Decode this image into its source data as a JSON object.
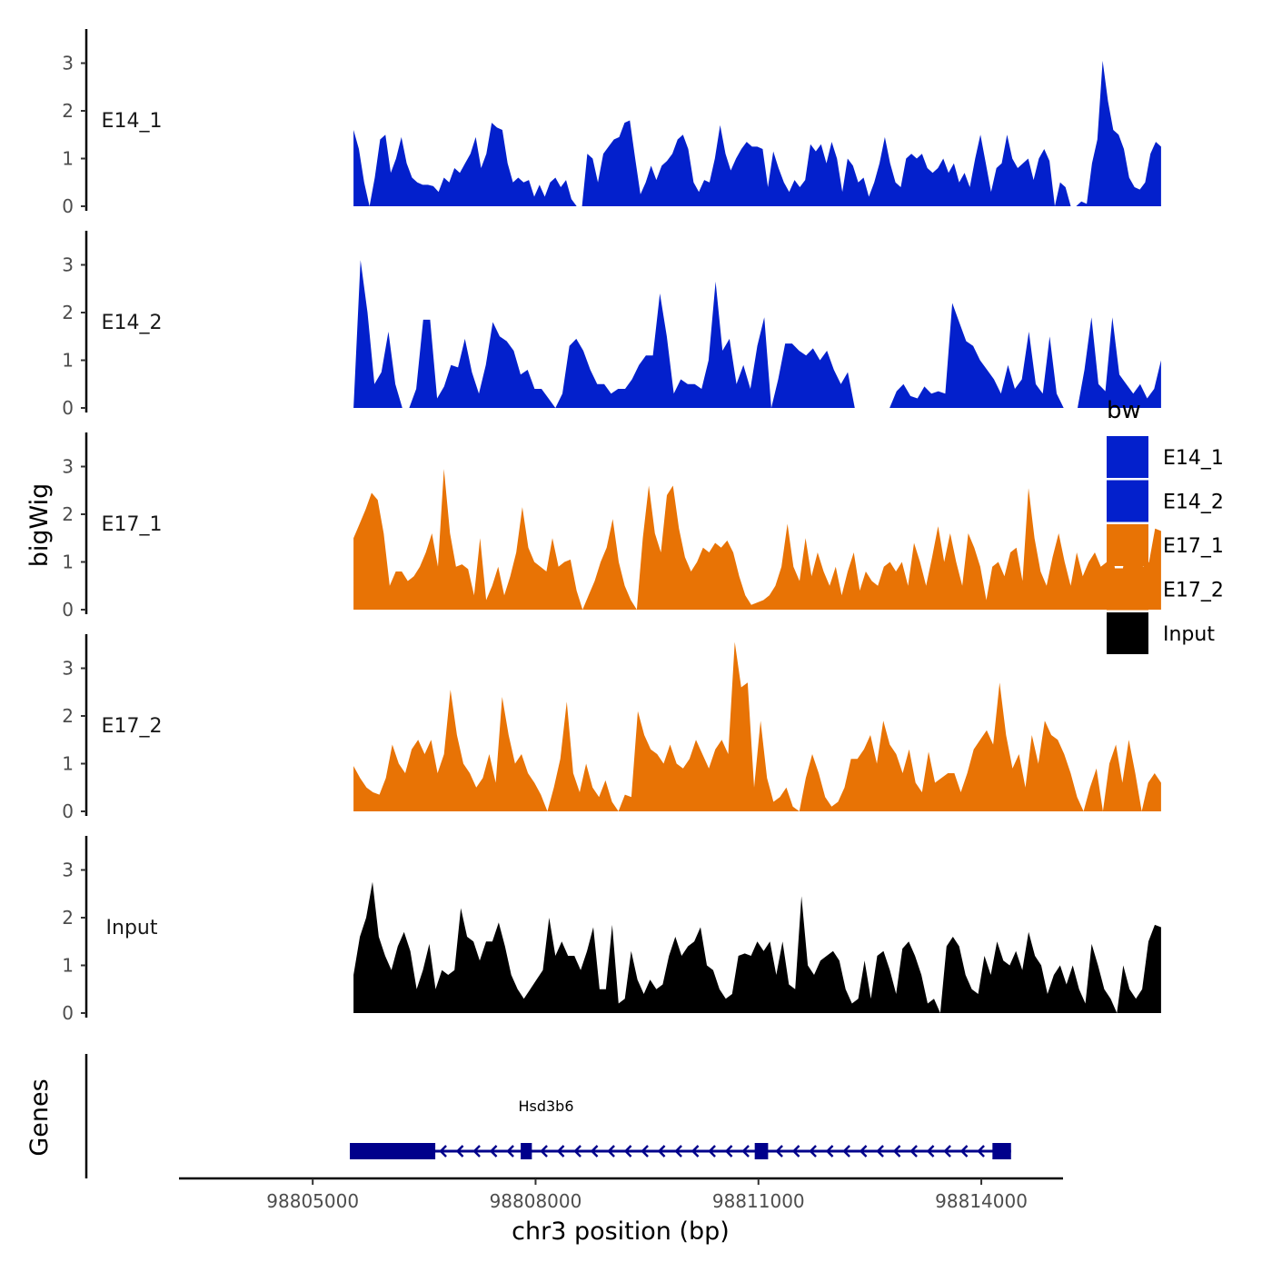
{
  "chart_data": {
    "type": "area",
    "xlabel": "chr3 position (bp)",
    "ylabel": "bigWig",
    "xlim": [
      98803200,
      98815100
    ],
    "x_ticks": [
      98805000,
      98808000,
      98811000,
      98814000
    ],
    "x_tick_labels": [
      "98805000",
      "98808000",
      "98811000",
      "98814000"
    ],
    "ylim": [
      0,
      3.8
    ],
    "y_ticks": [
      0,
      1,
      2,
      3
    ],
    "y_tick_labels": [
      "0",
      "1",
      "2",
      "3"
    ],
    "signal_start": 98805550,
    "signal_end": 98816420,
    "legend": {
      "title": "bw",
      "entries": [
        {
          "label": "E14_1",
          "color": "#0320CC"
        },
        {
          "label": "E14_2",
          "color": "#0320CC"
        },
        {
          "label": "E17_1",
          "color": "#E87305"
        },
        {
          "label": "E17_2",
          "color": "#E87305"
        },
        {
          "label": "Input",
          "color": "#000000"
        }
      ]
    },
    "series": [
      {
        "name": "E14_1",
        "color": "#0320CC",
        "values": [
          1.6,
          1.2,
          0.5,
          0.0,
          0.6,
          1.4,
          1.5,
          0.7,
          1.0,
          1.45,
          0.9,
          0.6,
          0.5,
          0.45,
          0.45,
          0.42,
          0.3,
          0.6,
          0.5,
          0.8,
          0.7,
          0.9,
          1.1,
          1.45,
          0.8,
          1.1,
          1.75,
          1.65,
          1.6,
          0.9,
          0.5,
          0.6,
          0.5,
          0.55,
          0.2,
          0.45,
          0.2,
          0.5,
          0.6,
          0.4,
          0.55,
          0.15,
          0.0,
          0.0,
          1.1,
          1.0,
          0.5,
          1.1,
          1.25,
          1.4,
          1.45,
          1.75,
          1.8,
          1.0,
          0.25,
          0.5,
          0.85,
          0.55,
          0.85,
          0.95,
          1.1,
          1.4,
          1.5,
          1.2,
          0.5,
          0.3,
          0.55,
          0.5,
          1.0,
          1.7,
          1.1,
          0.75,
          1.0,
          1.2,
          1.35,
          1.25,
          1.25,
          1.2,
          0.4,
          1.15,
          0.8,
          0.5,
          0.3,
          0.55,
          0.4,
          0.55,
          1.3,
          1.15,
          1.3,
          0.9,
          1.35,
          1.0,
          0.3,
          1.0,
          0.85,
          0.5,
          0.6,
          0.2,
          0.5,
          0.9,
          1.45,
          0.9,
          0.5,
          0.4,
          1.0,
          1.1,
          1.0,
          1.1,
          0.8,
          0.7,
          0.8,
          1.0,
          0.7,
          0.9,
          0.5,
          0.7,
          0.4,
          1.0,
          1.5,
          0.9,
          0.3,
          0.8,
          0.9,
          1.5,
          1.0,
          0.8,
          0.9,
          1.0,
          0.55,
          1.0,
          1.2,
          0.95,
          0.0,
          0.5,
          0.4,
          0.0,
          0.0,
          0.1,
          0.05,
          0.9,
          1.4,
          3.05,
          2.2,
          1.6,
          1.5,
          1.2,
          0.6,
          0.4,
          0.35,
          0.5,
          1.1,
          1.35,
          1.25
        ]
      },
      {
        "name": "E14_2",
        "color": "#0320CC",
        "values": [
          0.0,
          3.1,
          2.0,
          0.5,
          0.75,
          1.6,
          0.5,
          0.0,
          0.0,
          0.4,
          1.85,
          1.85,
          0.2,
          0.45,
          0.9,
          0.85,
          1.45,
          0.75,
          0.3,
          0.9,
          1.8,
          1.5,
          1.4,
          1.2,
          0.7,
          0.8,
          0.4,
          0.4,
          0.2,
          0.0,
          0.3,
          1.3,
          1.45,
          1.2,
          0.8,
          0.5,
          0.5,
          0.3,
          0.4,
          0.4,
          0.6,
          0.9,
          1.1,
          1.1,
          2.4,
          1.5,
          0.3,
          0.6,
          0.5,
          0.5,
          0.4,
          1.0,
          2.65,
          1.2,
          1.45,
          0.5,
          0.9,
          0.4,
          1.3,
          1.9,
          0.0,
          0.6,
          1.35,
          1.35,
          1.2,
          1.1,
          1.25,
          1.0,
          1.2,
          0.8,
          0.5,
          0.75,
          0.0,
          0.0,
          0.0,
          0.0,
          0.0,
          0.0,
          0.35,
          0.5,
          0.25,
          0.2,
          0.45,
          0.3,
          0.35,
          0.3,
          2.2,
          1.8,
          1.4,
          1.3,
          1.0,
          0.8,
          0.6,
          0.3,
          0.9,
          0.4,
          0.6,
          1.6,
          0.5,
          0.3,
          1.5,
          0.3,
          0.0,
          0.0,
          0.0,
          0.8,
          1.9,
          0.5,
          0.35,
          1.9,
          0.7,
          0.5,
          0.3,
          0.5,
          0.2,
          0.4,
          1.0
        ]
      },
      {
        "name": "E17_1",
        "color": "#E87305",
        "values": [
          1.5,
          1.8,
          2.1,
          2.45,
          2.3,
          1.6,
          0.5,
          0.8,
          0.8,
          0.6,
          0.7,
          0.9,
          1.2,
          1.6,
          0.9,
          2.95,
          1.6,
          0.9,
          0.95,
          0.85,
          0.3,
          1.5,
          0.2,
          0.5,
          0.9,
          0.3,
          0.7,
          1.2,
          2.15,
          1.3,
          1.0,
          0.9,
          0.8,
          1.5,
          0.9,
          1.0,
          1.05,
          0.4,
          0.0,
          0.3,
          0.6,
          1.0,
          1.3,
          1.9,
          1.0,
          0.5,
          0.2,
          0.0,
          1.5,
          2.6,
          1.6,
          1.2,
          2.4,
          2.6,
          1.7,
          1.1,
          0.8,
          1.0,
          1.3,
          1.2,
          1.4,
          1.3,
          1.45,
          1.2,
          0.7,
          0.3,
          0.1,
          0.15,
          0.2,
          0.3,
          0.5,
          0.9,
          1.8,
          0.9,
          0.6,
          1.5,
          0.7,
          1.2,
          0.8,
          0.5,
          0.9,
          0.3,
          0.8,
          1.2,
          0.4,
          0.8,
          0.6,
          0.5,
          0.9,
          1.0,
          0.8,
          1.0,
          0.5,
          1.4,
          1.0,
          0.5,
          1.1,
          1.75,
          1.0,
          1.6,
          1.0,
          0.5,
          1.6,
          1.3,
          0.9,
          0.2,
          0.9,
          1.0,
          0.7,
          1.2,
          1.3,
          0.6,
          2.55,
          1.5,
          0.8,
          0.5,
          1.1,
          1.6,
          1.0,
          0.5,
          1.2,
          0.7,
          1.0,
          1.2,
          0.9,
          1.0,
          1.1,
          0.4,
          1.1,
          1.3,
          1.5,
          0.9,
          1.0,
          1.7,
          1.65
        ]
      },
      {
        "name": "E17_2",
        "color": "#E87305",
        "values": [
          0.95,
          0.7,
          0.5,
          0.4,
          0.35,
          0.7,
          1.4,
          1.0,
          0.8,
          1.3,
          1.5,
          1.2,
          1.5,
          0.8,
          1.2,
          2.55,
          1.6,
          1.0,
          0.8,
          0.5,
          0.7,
          1.2,
          0.6,
          2.4,
          1.6,
          1.0,
          1.2,
          0.8,
          0.6,
          0.35,
          0.0,
          0.5,
          1.1,
          2.3,
          0.8,
          0.4,
          1.0,
          0.5,
          0.3,
          0.65,
          0.2,
          0.0,
          0.35,
          0.3,
          2.1,
          1.6,
          1.3,
          1.2,
          1.0,
          1.4,
          1.0,
          0.9,
          1.1,
          1.5,
          1.2,
          0.9,
          1.3,
          1.5,
          1.2,
          3.55,
          2.6,
          2.7,
          0.5,
          1.9,
          0.7,
          0.2,
          0.3,
          0.5,
          0.1,
          0.0,
          0.7,
          1.2,
          0.8,
          0.3,
          0.1,
          0.2,
          0.5,
          1.1,
          1.1,
          1.3,
          1.6,
          1.0,
          1.9,
          1.4,
          1.2,
          0.8,
          1.3,
          0.6,
          0.4,
          1.25,
          0.6,
          0.7,
          0.8,
          0.8,
          0.4,
          0.8,
          1.3,
          1.5,
          1.7,
          1.4,
          2.7,
          1.6,
          0.9,
          1.2,
          0.5,
          1.6,
          1.0,
          1.9,
          1.6,
          1.5,
          1.2,
          0.8,
          0.3,
          0.0,
          0.5,
          0.9,
          0.0,
          1.0,
          1.4,
          0.6,
          1.5,
          0.8,
          0.0,
          0.6,
          0.8,
          0.6
        ]
      },
      {
        "name": "Input",
        "color": "#000000",
        "values": [
          0.8,
          1.6,
          2.0,
          2.75,
          1.6,
          1.2,
          0.9,
          1.4,
          1.7,
          1.3,
          0.5,
          0.9,
          1.45,
          0.5,
          0.9,
          0.8,
          0.9,
          2.2,
          1.6,
          1.5,
          1.1,
          1.5,
          1.5,
          1.9,
          1.4,
          0.8,
          0.5,
          0.3,
          0.5,
          0.7,
          0.9,
          2.0,
          1.2,
          1.5,
          1.2,
          1.2,
          0.9,
          1.3,
          1.8,
          0.5,
          0.5,
          1.85,
          0.2,
          0.3,
          1.3,
          0.7,
          0.4,
          0.7,
          0.5,
          0.6,
          1.2,
          1.6,
          1.2,
          1.4,
          1.5,
          1.8,
          1.0,
          0.9,
          0.5,
          0.3,
          0.4,
          1.2,
          1.25,
          1.2,
          1.5,
          1.3,
          1.5,
          0.8,
          1.5,
          0.6,
          0.5,
          2.45,
          1.0,
          0.8,
          1.1,
          1.2,
          1.3,
          1.1,
          0.5,
          0.2,
          0.3,
          1.1,
          0.3,
          1.2,
          1.3,
          0.9,
          0.4,
          1.35,
          1.5,
          1.2,
          0.8,
          0.2,
          0.3,
          0.0,
          1.4,
          1.6,
          1.4,
          0.8,
          0.5,
          0.4,
          1.2,
          0.8,
          1.5,
          1.1,
          1.0,
          1.3,
          0.9,
          1.7,
          1.2,
          1.0,
          0.4,
          0.8,
          1.0,
          0.6,
          1.0,
          0.5,
          0.2,
          1.45,
          1.0,
          0.5,
          0.3,
          0.0,
          1.0,
          0.5,
          0.3,
          0.5,
          1.5,
          1.85,
          1.8
        ]
      }
    ],
    "genes_track": {
      "label": "Genes",
      "color": "#00008B",
      "genes": [
        {
          "name": "Hsd3b6",
          "strand": "-",
          "start": 98805500,
          "end": 98814400,
          "exons": [
            [
              98805500,
              98806650
            ],
            [
              98807800,
              98807950
            ],
            [
              98810950,
              98811130
            ],
            [
              98814150,
              98814400
            ]
          ]
        }
      ]
    }
  }
}
